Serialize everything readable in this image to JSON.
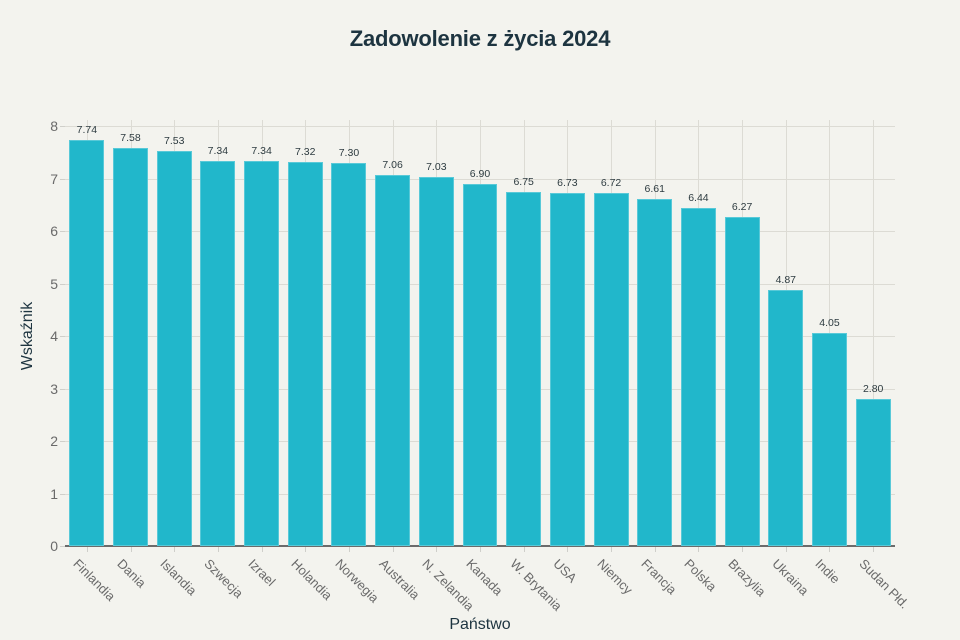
{
  "chart_data": {
    "type": "bar",
    "title": "Zadowolenie z życia 2024",
    "xlabel": "Państwo",
    "ylabel": "Wskaźnik",
    "ylim": [
      0,
      8
    ],
    "yticks": [
      0,
      1,
      2,
      3,
      4,
      5,
      6,
      7,
      8
    ],
    "grid": true,
    "legend": null,
    "bar_color": "#21b7cb",
    "categories": [
      "Finlandia",
      "Dania",
      "Islandia",
      "Szwecja",
      "Izrael",
      "Holandia",
      "Norwegia",
      "Australia",
      "N. Zelandia",
      "Kanada",
      "W. Brytania",
      "USA",
      "Niemcy",
      "Francja",
      "Polska",
      "Brazylia",
      "Ukraina",
      "Indie",
      "Sudan Płd."
    ],
    "values": [
      7.74,
      7.58,
      7.53,
      7.34,
      7.34,
      7.32,
      7.3,
      7.06,
      7.03,
      6.9,
      6.75,
      6.73,
      6.72,
      6.61,
      6.44,
      6.27,
      4.87,
      4.05,
      2.8
    ],
    "value_labels": [
      "7.74",
      "7.58",
      "7.53",
      "7.34",
      "7.34",
      "7.32",
      "7.30",
      "7.06",
      "7.03",
      "6.90",
      "6.75",
      "6.73",
      "6.72",
      "6.61",
      "6.44",
      "6.27",
      "4.87",
      "4.05",
      "2.80"
    ]
  },
  "labels": {
    "title": "Zadowolenie z życia 2024",
    "xlabel": "Państwo",
    "ylabel": "Wskaźnik"
  }
}
